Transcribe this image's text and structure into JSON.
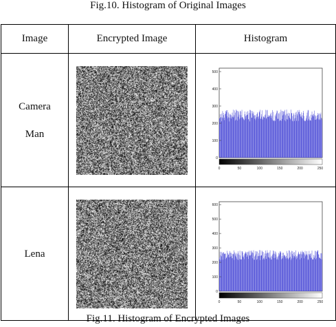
{
  "captions": {
    "top": "Fig.10. Histogram of Original Images",
    "bottom": "Fig.11. Histogram of Encrypted Images"
  },
  "table": {
    "headers": [
      "Image",
      "Encrypted Image",
      "Histogram"
    ],
    "rows": [
      {
        "label_lines": [
          "Camera",
          "Man"
        ],
        "histogram": {
          "chart_type": "bar",
          "yticks": [
            "0",
            "100",
            "200",
            "300",
            "400",
            "500"
          ],
          "xticks": [
            "0",
            "50",
            "100",
            "150",
            "200",
            "250"
          ],
          "ylim": [
            0,
            520
          ],
          "xlim": [
            0,
            255
          ],
          "mean_count": 245,
          "bar_color": "#4a4ad6"
        }
      },
      {
        "label_lines": [
          "Lena"
        ],
        "histogram": {
          "chart_type": "bar",
          "yticks": [
            "0",
            "100",
            "200",
            "300",
            "400",
            "500",
            "600"
          ],
          "xticks": [
            "0",
            "50",
            "100",
            "150",
            "200",
            "250"
          ],
          "ylim": [
            0,
            620
          ],
          "xlim": [
            0,
            255
          ],
          "mean_count": 250,
          "bar_color": "#4a4ad6"
        }
      }
    ]
  }
}
